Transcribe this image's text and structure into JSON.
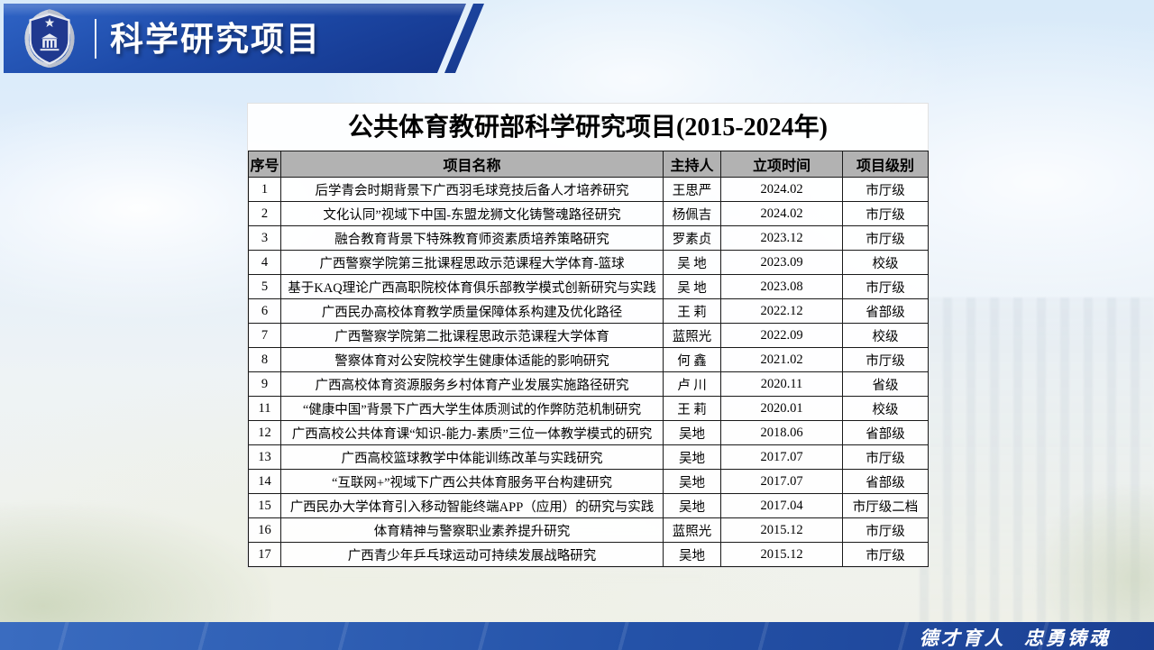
{
  "header": {
    "title": "科学研究项目",
    "logo": "guangxi-police-college-badge"
  },
  "table": {
    "title": "公共体育教研部科学研究项目(2015-2024年)",
    "columns": [
      "序号",
      "项目名称",
      "主持人",
      "立项时间",
      "项目级别"
    ],
    "rows": [
      [
        "1",
        "后学青会时期背景下广西羽毛球竞技后备人才培养研究",
        "王思严",
        "2024.02",
        "市厅级"
      ],
      [
        "2",
        "文化认同”视域下中国-东盟龙狮文化铸警魂路径研究",
        "杨佩吉",
        "2024.02",
        "市厅级"
      ],
      [
        "3",
        "融合教育背景下特殊教育师资素质培养策略研究",
        "罗素贞",
        "2023.12",
        "市厅级"
      ],
      [
        "4",
        "广西警察学院第三批课程思政示范课程大学体育-篮球",
        "吴 地",
        "2023.09",
        "校级"
      ],
      [
        "5",
        "基于KAQ理论广西高职院校体育俱乐部教学模式创新研究与实践",
        "吴 地",
        "2023.08",
        "市厅级"
      ],
      [
        "6",
        "广西民办高校体育教学质量保障体系构建及优化路径",
        "王 莉",
        "2022.12",
        "省部级"
      ],
      [
        "7",
        "广西警察学院第二批课程思政示范课程大学体育",
        "蓝照光",
        "2022.09",
        "校级"
      ],
      [
        "8",
        "警察体育对公安院校学生健康体适能的影响研究",
        "何 鑫",
        "2021.02",
        "市厅级"
      ],
      [
        "9",
        "广西高校体育资源服务乡村体育产业发展实施路径研究",
        "卢 川",
        "2020.11",
        "省级"
      ],
      [
        "11",
        "“健康中国”背景下广西大学生体质测试的作弊防范机制研究",
        "王 莉",
        "2020.01",
        "校级"
      ],
      [
        "12",
        "广西高校公共体育课“知识-能力-素质”三位一体教学模式的研究",
        "吴地",
        "2018.06",
        "省部级"
      ],
      [
        "13",
        "广西高校篮球教学中体能训练改革与实践研究",
        "吴地",
        "2017.07",
        "市厅级"
      ],
      [
        "14",
        "“互联网+”视域下广西公共体育服务平台构建研究",
        "吴地",
        "2017.07",
        "省部级"
      ],
      [
        "15",
        "广西民办大学体育引入移动智能终端APP（应用）的研究与实践",
        "吴地",
        "2017.04",
        "市厅级二档"
      ],
      [
        "16",
        "体育精神与警察职业素养提升研究",
        "蓝照光",
        "2015.12",
        "市厅级"
      ],
      [
        "17",
        "广西青少年乒乓球运动可持续发展战略研究",
        "吴地",
        "2015.12",
        "市厅级"
      ]
    ]
  },
  "footer": {
    "motto": "德才育人 忠勇铸魂"
  },
  "colors": {
    "header_bar_blue": "#1d4aa8",
    "table_header_gray": "#b2b2b2",
    "footer_blue": "#2452a8"
  }
}
